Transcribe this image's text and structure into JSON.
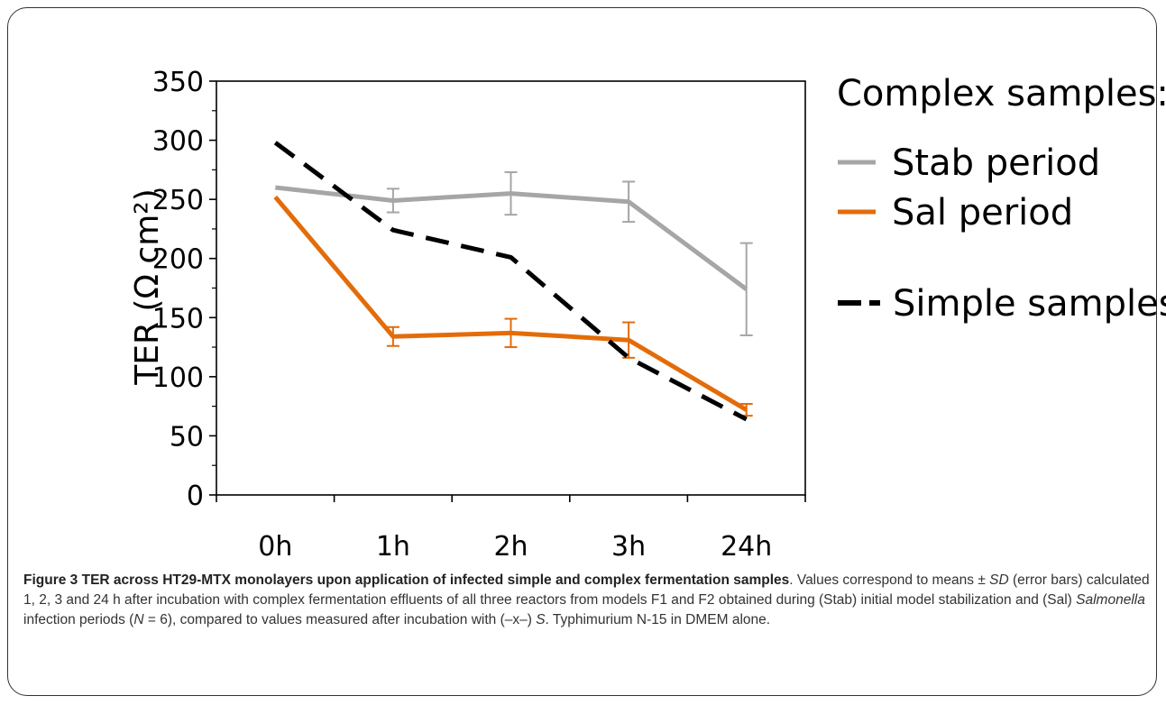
{
  "chart_data": {
    "type": "line",
    "categories": [
      "0h",
      "1h",
      "2h",
      "3h",
      "24h"
    ],
    "ylabel": "TER (Ω cm²)",
    "ylim": [
      0,
      350
    ],
    "yticks": [
      0,
      50,
      100,
      150,
      200,
      250,
      300,
      350
    ],
    "grid": false,
    "legend_title": "Complex samples:",
    "legend_position": "right",
    "series": [
      {
        "name": "Stab period",
        "color": "#a6a6a6",
        "style": "solid",
        "values": [
          260,
          249,
          255,
          248,
          174
        ],
        "error": [
          0,
          10,
          18,
          17,
          39
        ]
      },
      {
        "name": "Sal period",
        "color": "#e36c0a",
        "style": "solid",
        "values": [
          252,
          134,
          137,
          131,
          72
        ],
        "error": [
          0,
          8,
          12,
          15,
          5
        ]
      },
      {
        "name": "Simple samples",
        "color": "#000000",
        "style": "dashed",
        "values": [
          298,
          224,
          201,
          116,
          64
        ],
        "error": [
          0,
          0,
          0,
          0,
          0
        ]
      }
    ]
  },
  "caption": {
    "figure_label": "Figure 3",
    "title": "TER across HT29-MTX monolayers upon application of infected simple and complex fermentation samples",
    "text_1": ". Values correspond to means ± ",
    "sd": "SD",
    "text_2": " (error bars) calculated 1, 2, 3 and 24 h after incubation with complex fermentation effluents of all three reactors from models F1 and F2 obtained during (Stab) initial model stabilization and (Sal) ",
    "salmonella": "Salmonella",
    "text_3": " infection periods (",
    "n": "N",
    "text_4": " = 6), compared to values measured after incubation with (–x–) ",
    "s": "S",
    "text_5": ". Typhimurium N-15 in DMEM alone."
  }
}
